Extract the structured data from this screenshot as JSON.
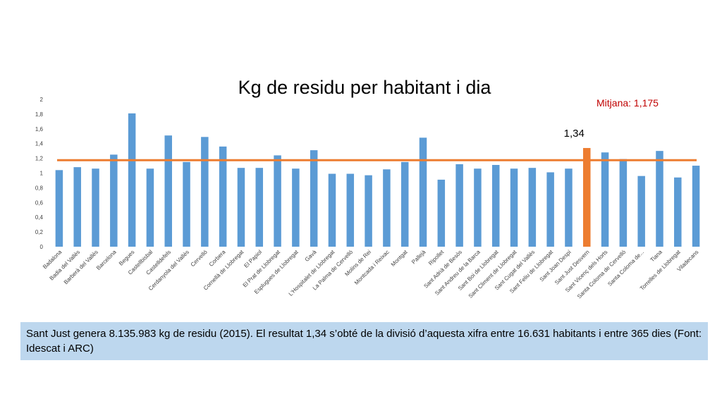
{
  "chart_data": {
    "type": "bar",
    "title": "Kg de residu per habitant i dia",
    "ylim": [
      0,
      2
    ],
    "yticks": [
      "0",
      "0,2",
      "0,4",
      "0,6",
      "0,8",
      "1",
      "1,2",
      "1,4",
      "1,6",
      "1,8",
      "2"
    ],
    "categories": [
      "Badalona",
      "Badia del Vallès",
      "Barberà del Vallès",
      "Barcelona",
      "Begues",
      "Castellbisbal",
      "Castelldefels",
      "Cerdanyola del Vallès",
      "Cervelló",
      "Corbera",
      "Cornellà de Llobregat",
      "El Papiol",
      "El Prat de Llobregat",
      "Esplugues de Llobregat",
      "Gavà",
      "L'Hospitalet de Llobregat",
      "La Palma de Cervelló",
      "Molins de Rei",
      "Montcada i Reixac",
      "Montgat",
      "Pallejà",
      "Ripollet",
      "Sant Adrià de Besòs",
      "Sant Andreu de la Barca",
      "Sant Boi de Llobregat",
      "Sant Climent de Llobregat",
      "Sant Cugat del Vallès",
      "Sant Feliu de Llobregat",
      "Sant Joan Despí",
      "Sant Just Desvern",
      "Sant Vicenç dels Horts",
      "Santa Coloma de Cervelló",
      "Santa Coloma de...",
      "Tiana",
      "Torrelles de Llobregat",
      "Viladecans"
    ],
    "values": [
      1.04,
      1.08,
      1.06,
      1.25,
      1.81,
      1.06,
      1.51,
      1.15,
      1.49,
      1.36,
      1.07,
      1.07,
      1.24,
      1.06,
      1.31,
      0.99,
      0.99,
      0.97,
      1.05,
      1.15,
      1.48,
      0.91,
      1.12,
      1.06,
      1.11,
      1.06,
      1.07,
      1.01,
      1.06,
      1.34,
      1.28,
      1.19,
      0.96,
      1.3,
      0.94,
      1.1
    ],
    "highlight_index": 29,
    "highlight_label": "1,34",
    "average": 1.175,
    "average_label": "Mitjana: 1,175",
    "colors": {
      "bar": "#5b9bd5",
      "highlight": "#ed7d31",
      "average_line": "#ed7d31",
      "average_text": "#c00000"
    }
  },
  "note": "Sant Just genera 8.135.983 kg de residu (2015). El resultat 1,34 s’obté de la divisió d’aquesta xifra entre 16.631 habitants i entre 365 dies (Font: Idescat i ARC)"
}
